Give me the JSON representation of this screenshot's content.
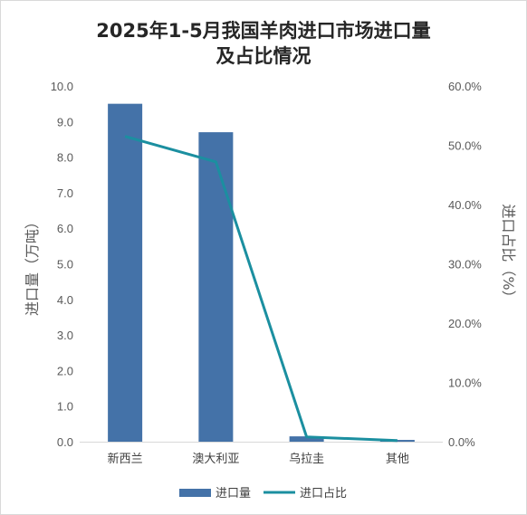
{
  "chart_data": {
    "type": "bar+line",
    "title_line1": "2025年1-5月我国羊肉进口市场进口量",
    "title_line2": "及占比情况",
    "categories": [
      "新西兰",
      "澳大利亚",
      "乌拉圭",
      "其他"
    ],
    "series": [
      {
        "name": "进口量",
        "type": "bar",
        "axis": "left",
        "color": "#4472a8",
        "values": [
          9.5,
          8.7,
          0.15,
          0.05
        ]
      },
      {
        "name": "进口占比",
        "type": "line",
        "axis": "right",
        "color": "#1b8fa0",
        "values": [
          51.5,
          47.2,
          0.8,
          0.2
        ]
      }
    ],
    "ylabel_left": "进口量（万吨）",
    "ylabel_right": "进口占比（%）",
    "ylim_left": [
      0,
      10
    ],
    "ylim_right": [
      0,
      60
    ],
    "yticks_left": [
      "0.0",
      "1.0",
      "2.0",
      "3.0",
      "4.0",
      "5.0",
      "6.0",
      "7.0",
      "8.0",
      "9.0",
      "10.0"
    ],
    "yticks_right": [
      "0.0%",
      "10.0%",
      "20.0%",
      "30.0%",
      "40.0%",
      "50.0%",
      "60.0%"
    ],
    "grid": false,
    "legend_position": "bottom"
  }
}
